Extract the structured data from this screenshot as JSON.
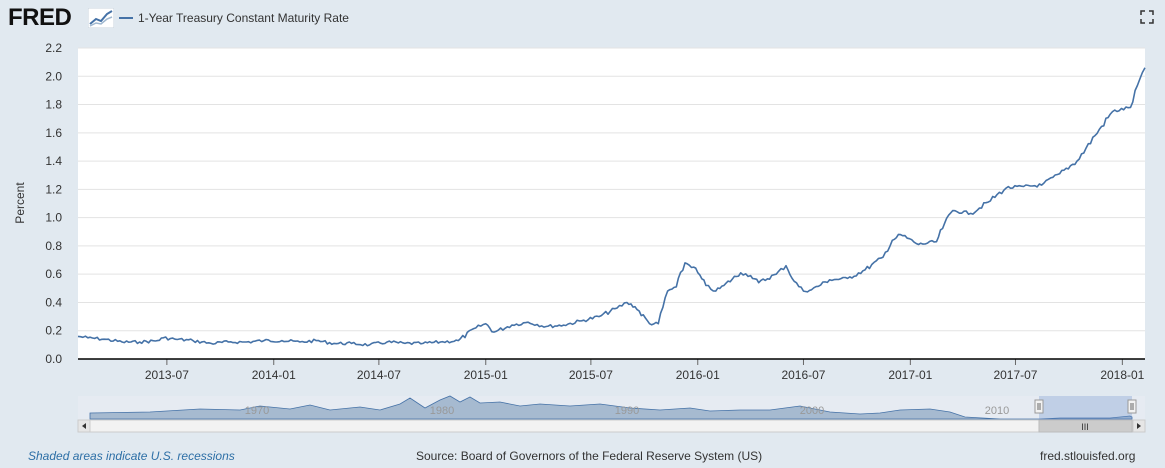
{
  "header": {
    "logo_text": "FRED",
    "series_legend": "1-Year Treasury Constant Maturity Rate",
    "series_color": "#4572a7"
  },
  "icons": {
    "logo": "fred-chart-logo-icon",
    "fullscreen": "fullscreen-icon"
  },
  "footer": {
    "recession_note": "Shaded areas indicate U.S. recessions",
    "source": "Source: Board of Governors of the Federal Reserve System (US)",
    "site": "fred.stlouisfed.org"
  },
  "navigator": {
    "year_labels": [
      "1970",
      "1980",
      "1990",
      "2000",
      "2010"
    ],
    "scroll_grip": "III"
  },
  "chart_data": {
    "type": "line",
    "title": "",
    "xlabel": "",
    "ylabel": "Percent",
    "ylim": [
      0,
      2.2
    ],
    "yticks": [
      "0.0",
      "0.2",
      "0.4",
      "0.6",
      "0.8",
      "1.0",
      "1.2",
      "1.4",
      "1.6",
      "1.8",
      "2.0",
      "2.2"
    ],
    "xlim": [
      "2013-01-29",
      "2018-02-09"
    ],
    "xticks": [
      "2013-07",
      "2014-01",
      "2014-07",
      "2015-01",
      "2015-07",
      "2016-01",
      "2016-07",
      "2017-01",
      "2017-07",
      "2018-01"
    ],
    "grid": true,
    "series": [
      {
        "name": "1-Year Treasury Constant Maturity Rate",
        "color": "#4572a7",
        "x": [
          "2013-01-29",
          "2013-02-15",
          "2013-03-15",
          "2013-04-15",
          "2013-05-15",
          "2013-06-15",
          "2013-06-25",
          "2013-07-15",
          "2013-08-15",
          "2013-09-15",
          "2013-10-15",
          "2013-11-15",
          "2013-12-15",
          "2014-01-15",
          "2014-02-15",
          "2014-03-15",
          "2014-04-15",
          "2014-05-15",
          "2014-06-15",
          "2014-07-15",
          "2014-08-15",
          "2014-09-15",
          "2014-10-15",
          "2014-11-15",
          "2014-12-15",
          "2015-01-01",
          "2015-01-15",
          "2015-02-15",
          "2015-03-15",
          "2015-04-15",
          "2015-05-15",
          "2015-06-15",
          "2015-07-15",
          "2015-08-15",
          "2015-09-01",
          "2015-09-15",
          "2015-10-10",
          "2015-10-25",
          "2015-11-10",
          "2015-11-25",
          "2015-12-10",
          "2015-12-25",
          "2016-01-15",
          "2016-02-01",
          "2016-02-15",
          "2016-03-15",
          "2016-04-01",
          "2016-04-15",
          "2016-05-15",
          "2016-06-01",
          "2016-06-15",
          "2016-07-01",
          "2016-07-15",
          "2016-08-15",
          "2016-09-15",
          "2016-10-15",
          "2016-11-15",
          "2016-12-01",
          "2016-12-15",
          "2017-01-15",
          "2017-02-15",
          "2017-03-01",
          "2017-03-15",
          "2017-04-15",
          "2017-05-15",
          "2017-06-15",
          "2017-07-15",
          "2017-08-15",
          "2017-09-15",
          "2017-10-15",
          "2017-11-15",
          "2017-12-15",
          "2018-01-15",
          "2018-01-31",
          "2018-02-09"
        ],
        "values": [
          0.16,
          0.15,
          0.14,
          0.12,
          0.12,
          0.13,
          0.15,
          0.14,
          0.13,
          0.11,
          0.12,
          0.12,
          0.13,
          0.13,
          0.12,
          0.13,
          0.11,
          0.11,
          0.1,
          0.12,
          0.11,
          0.11,
          0.12,
          0.13,
          0.22,
          0.25,
          0.19,
          0.24,
          0.26,
          0.23,
          0.24,
          0.27,
          0.3,
          0.36,
          0.4,
          0.37,
          0.25,
          0.25,
          0.48,
          0.51,
          0.68,
          0.65,
          0.52,
          0.48,
          0.52,
          0.61,
          0.59,
          0.54,
          0.6,
          0.66,
          0.55,
          0.48,
          0.49,
          0.56,
          0.57,
          0.63,
          0.72,
          0.84,
          0.88,
          0.81,
          0.83,
          0.96,
          1.05,
          1.03,
          1.11,
          1.21,
          1.22,
          1.23,
          1.31,
          1.4,
          1.58,
          1.75,
          1.78,
          1.98,
          2.06
        ]
      }
    ]
  }
}
